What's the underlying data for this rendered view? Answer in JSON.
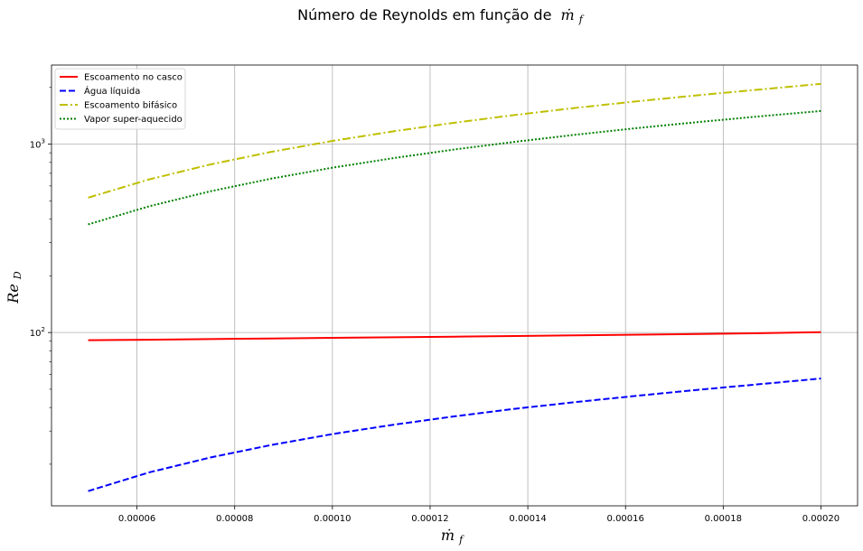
{
  "chart_data": {
    "type": "line",
    "title": "Número de Reynolds em função de",
    "title_math": {
      "base": "ṁ",
      "sub": "f"
    },
    "xlabel": {
      "base": "ṁ",
      "sub": "f"
    },
    "ylabel": {
      "base": "Re",
      "sub": "D"
    },
    "xlim": [
      4.25e-05,
      0.0002075
    ],
    "ylim_log10": [
      1.08,
      3.42
    ],
    "yscale": "log",
    "grid": true,
    "legend_position": "top-left",
    "xticks": [
      6e-05,
      8e-05,
      0.0001,
      0.00012,
      0.00014,
      0.00016,
      0.00018,
      0.0002
    ],
    "xtick_labels": [
      "0.00006",
      "0.00008",
      "0.00010",
      "0.00012",
      "0.00014",
      "0.00016",
      "0.00018",
      "0.00020"
    ],
    "yticks": [
      {
        "value": 100,
        "base": "10",
        "exp": "2"
      },
      {
        "value": 1000,
        "base": "10",
        "exp": "3"
      }
    ],
    "x": [
      5e-05,
      6.25e-05,
      7.5e-05,
      8.75e-05,
      0.0001,
      0.0001125,
      0.000125,
      0.0001375,
      0.00015,
      0.0001625,
      0.000175,
      0.0001875,
      0.0002
    ],
    "series": [
      {
        "name": "Escoamento no casco",
        "color": "#ff0000",
        "style": "solid",
        "values": [
          91,
          91.6,
          92.3,
          93.0,
          93.7,
          94.4,
          95.1,
          95.8,
          96.6,
          97.4,
          98.3,
          99.2,
          100.5
        ]
      },
      {
        "name": "Água líquida",
        "color": "#0000ff",
        "style": "dashed",
        "values": [
          14.4,
          18.1,
          21.7,
          25.3,
          28.9,
          32.4,
          35.9,
          39.4,
          42.8,
          46.2,
          49.7,
          53.2,
          57.0
        ]
      },
      {
        "name": "Escoamento bifásico",
        "color": "#bfbf00",
        "style": "dashdot",
        "values": [
          520,
          650,
          780,
          910,
          1040,
          1170,
          1300,
          1430,
          1560,
          1690,
          1820,
          1950,
          2090
        ]
      },
      {
        "name": "Vapor super-aquecido",
        "color": "#008000",
        "style": "dotted",
        "values": [
          375,
          468,
          562,
          656,
          750,
          843,
          937,
          1030,
          1124,
          1218,
          1311,
          1405,
          1500
        ]
      }
    ]
  }
}
